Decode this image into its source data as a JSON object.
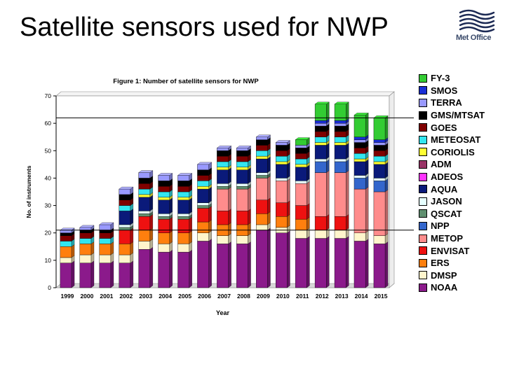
{
  "slide": {
    "title": "Satellite sensors used for NWP",
    "logo_text": "Met Office"
  },
  "colors": {
    "FY-3": "#33cc33",
    "SMOS": "#1a2fd6",
    "TERRA": "#9999ff",
    "GMS/MTSAT": "#000000",
    "GOES": "#800000",
    "METEOSAT": "#33e6f0",
    "CORIOLIS": "#ffff33",
    "ADM": "#993366",
    "ADEOS": "#ff33ff",
    "AQUA": "#0a1a7a",
    "JASON": "#e6ffff",
    "QSCAT": "#5f8f6f",
    "NPP": "#3366cc",
    "METOP": "#ff8c8c",
    "ENVISAT": "#ee1111",
    "ERS": "#ff7f0e",
    "DMSP": "#fff5cc",
    "NOAA": "#8b1a8b"
  },
  "chart_data": {
    "type": "bar",
    "stacked": true,
    "title": "Figure 1: Number of satellite sensors for NWP",
    "xlabel": "Year",
    "ylabel": "No. of instruments",
    "ylim": [
      0,
      70
    ],
    "yticks": [
      0,
      10,
      20,
      30,
      40,
      50,
      60,
      70
    ],
    "reference_lines": [
      62,
      21
    ],
    "categories": [
      "1999",
      "2000",
      "2001",
      "2002",
      "2003",
      "2004",
      "2005",
      "2006",
      "2007",
      "2008",
      "2009",
      "2010",
      "2011",
      "2012",
      "2013",
      "2014",
      "2015"
    ],
    "series": [
      {
        "name": "NOAA",
        "values": [
          9,
          9,
          9,
          9,
          14,
          13,
          13,
          17,
          16,
          16,
          21,
          20,
          18,
          18,
          18,
          17,
          16
        ]
      },
      {
        "name": "DMSP",
        "values": [
          2,
          3,
          3,
          3,
          3,
          3,
          3,
          3,
          3,
          3,
          2,
          2,
          3,
          3,
          3,
          3,
          3
        ]
      },
      {
        "name": "ERS",
        "values": [
          4,
          4,
          4,
          4,
          4,
          4,
          4,
          4,
          4,
          4,
          4,
          4,
          4,
          0,
          0,
          0,
          0
        ]
      },
      {
        "name": "ENVISAT",
        "values": [
          0,
          0,
          0,
          5,
          5,
          5,
          5,
          5,
          5,
          5,
          5,
          5,
          5,
          5,
          5,
          0,
          0
        ]
      },
      {
        "name": "METOP",
        "values": [
          0,
          0,
          0,
          0,
          0,
          0,
          0,
          0,
          8,
          8,
          8,
          8,
          8,
          16,
          16,
          16,
          16
        ]
      },
      {
        "name": "NPP",
        "values": [
          0,
          0,
          0,
          0,
          0,
          0,
          0,
          0,
          0,
          0,
          0,
          0,
          0,
          4,
          4,
          4,
          4
        ]
      },
      {
        "name": "QSCAT",
        "values": [
          0,
          0,
          0,
          1,
          1,
          1,
          1,
          1,
          1,
          1,
          1,
          0,
          0,
          0,
          0,
          0,
          0
        ]
      },
      {
        "name": "JASON",
        "values": [
          0,
          0,
          0,
          1,
          1,
          1,
          1,
          1,
          1,
          1,
          1,
          1,
          1,
          1,
          1,
          1,
          1
        ]
      },
      {
        "name": "AQUA",
        "values": [
          0,
          0,
          0,
          5,
          5,
          5,
          5,
          5,
          5,
          5,
          5,
          5,
          5,
          5,
          5,
          5,
          5
        ]
      },
      {
        "name": "ADEOS",
        "values": [
          0,
          0,
          0,
          0,
          0,
          0,
          0,
          0,
          0,
          0,
          0,
          0,
          0,
          0,
          0,
          0,
          0
        ]
      },
      {
        "name": "ADM",
        "values": [
          0,
          0,
          0,
          0,
          0,
          0,
          0,
          0,
          0,
          0,
          0,
          0,
          0,
          0,
          0,
          0,
          0
        ]
      },
      {
        "name": "CORIOLIS",
        "values": [
          0,
          0,
          0,
          0,
          1,
          1,
          1,
          1,
          1,
          1,
          1,
          1,
          1,
          1,
          1,
          1,
          1
        ]
      },
      {
        "name": "METEOSAT",
        "values": [
          2,
          2,
          2,
          2,
          2,
          2,
          2,
          2,
          2,
          2,
          2,
          2,
          2,
          2,
          2,
          2,
          2
        ]
      },
      {
        "name": "GOES",
        "values": [
          2,
          2,
          2,
          2,
          2,
          2,
          2,
          2,
          2,
          2,
          2,
          2,
          2,
          2,
          2,
          2,
          2
        ]
      },
      {
        "name": "GMS/MTSAT",
        "values": [
          1,
          1,
          1,
          2,
          2,
          2,
          2,
          2,
          2,
          2,
          2,
          2,
          2,
          2,
          2,
          2,
          2
        ]
      },
      {
        "name": "TERRA",
        "values": [
          1,
          1,
          2,
          2,
          2,
          2,
          2,
          2,
          1,
          1,
          1,
          1,
          1,
          1,
          1,
          1,
          1
        ]
      },
      {
        "name": "SMOS",
        "values": [
          0,
          0,
          0,
          0,
          0,
          0,
          0,
          0,
          0,
          0,
          0,
          0,
          0,
          1,
          1,
          1,
          1
        ]
      },
      {
        "name": "FY-3",
        "values": [
          0,
          0,
          0,
          0,
          0,
          0,
          0,
          0,
          0,
          0,
          0,
          0,
          2,
          6,
          6,
          8,
          8
        ]
      }
    ],
    "legend": [
      "FY-3",
      "SMOS",
      "TERRA",
      "GMS/MTSAT",
      "GOES",
      "METEOSAT",
      "CORIOLIS",
      "ADM",
      "ADEOS",
      "AQUA",
      "JASON",
      "QSCAT",
      "NPP",
      "METOP",
      "ENVISAT",
      "ERS",
      "DMSP",
      "NOAA"
    ],
    "legend_position": "right"
  }
}
